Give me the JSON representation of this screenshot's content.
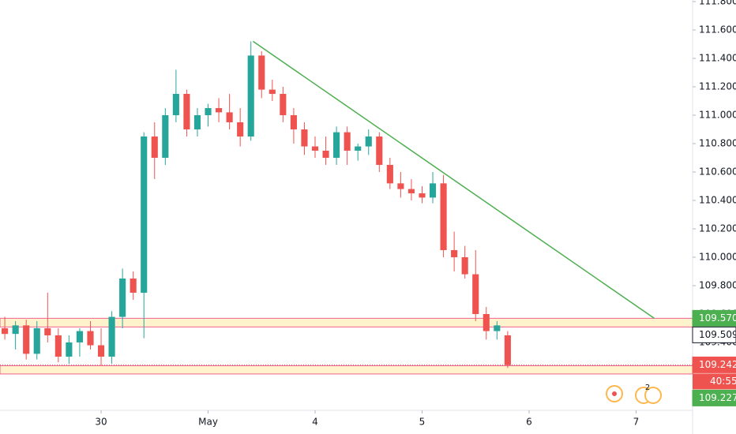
{
  "chart_data": {
    "type": "candlestick",
    "up_color": "#26a69a",
    "down_color": "#ef5350",
    "x": [
      -0.9,
      -0.8,
      -0.7,
      -0.6,
      -0.5,
      -0.4,
      -0.3,
      -0.2,
      -0.1,
      0.0,
      0.1,
      0.2,
      0.3,
      0.4,
      0.5,
      0.6,
      0.7,
      0.8,
      0.9,
      1.0,
      1.1,
      1.2,
      1.3,
      1.4,
      1.5,
      1.6,
      1.7,
      1.8,
      1.9,
      2.0,
      2.1,
      2.2,
      2.3,
      2.4,
      2.5,
      2.6,
      2.7,
      2.8,
      2.9,
      3.0,
      3.1,
      3.2,
      3.3,
      3.4,
      3.5,
      3.6,
      3.7,
      3.8
    ],
    "open": [
      109.5,
      109.46,
      109.52,
      109.32,
      109.5,
      109.45,
      109.3,
      109.4,
      109.48,
      109.38,
      109.3,
      109.58,
      109.85,
      109.75,
      110.85,
      110.7,
      111.0,
      111.15,
      110.9,
      111.0,
      111.05,
      111.02,
      110.95,
      110.85,
      111.42,
      111.18,
      111.15,
      111.0,
      110.9,
      110.78,
      110.75,
      110.7,
      110.88,
      110.75,
      110.78,
      110.85,
      110.65,
      110.52,
      110.48,
      110.45,
      110.42,
      110.52,
      110.05,
      110.0,
      109.88,
      109.6,
      109.48,
      109.45
    ],
    "high": [
      109.58,
      109.55,
      109.56,
      109.55,
      109.75,
      109.5,
      109.45,
      109.5,
      109.55,
      109.5,
      109.62,
      109.92,
      109.9,
      110.88,
      110.95,
      111.05,
      111.32,
      111.18,
      111.05,
      111.08,
      111.12,
      111.15,
      111.05,
      111.52,
      111.45,
      111.25,
      111.2,
      111.05,
      110.95,
      110.85,
      110.85,
      110.92,
      110.92,
      110.8,
      110.9,
      110.88,
      110.7,
      110.6,
      110.55,
      110.5,
      110.6,
      110.58,
      110.18,
      110.08,
      110.05,
      109.65,
      109.55,
      109.48
    ],
    "low": [
      109.42,
      109.35,
      109.28,
      109.28,
      109.4,
      109.26,
      109.25,
      109.3,
      109.35,
      109.24,
      109.25,
      109.5,
      109.7,
      109.43,
      110.55,
      110.65,
      110.95,
      110.85,
      110.85,
      110.92,
      110.95,
      110.9,
      110.78,
      110.82,
      111.12,
      111.1,
      110.95,
      110.8,
      110.72,
      110.7,
      110.65,
      110.65,
      110.65,
      110.68,
      110.72,
      110.6,
      110.48,
      110.42,
      110.4,
      110.38,
      110.38,
      110.0,
      109.9,
      109.85,
      109.55,
      109.42,
      109.42,
      109.22
    ],
    "close": [
      109.46,
      109.52,
      109.32,
      109.5,
      109.45,
      109.3,
      109.4,
      109.48,
      109.38,
      109.3,
      109.58,
      109.85,
      109.75,
      110.85,
      110.7,
      111.0,
      111.15,
      110.9,
      111.0,
      111.05,
      111.02,
      110.95,
      110.85,
      111.42,
      111.18,
      111.15,
      111.0,
      110.9,
      110.78,
      110.75,
      110.7,
      110.88,
      110.75,
      110.78,
      110.85,
      110.65,
      110.52,
      110.48,
      110.45,
      110.42,
      110.52,
      110.05,
      110.0,
      109.88,
      109.6,
      109.48,
      109.52,
      109.24
    ],
    "xlim": [
      -0.945,
      5.528
    ],
    "xticks": [
      {
        "value": 0,
        "label": "30"
      },
      {
        "value": 1,
        "label": "May"
      },
      {
        "value": 2,
        "label": "4"
      },
      {
        "value": 3,
        "label": "5"
      },
      {
        "value": 4,
        "label": "6"
      },
      {
        "value": 5,
        "label": "7"
      }
    ],
    "ylim": [
      108.922,
      111.811
    ],
    "yticks": [
      {
        "value": 111.8,
        "label": "111.800"
      },
      {
        "value": 111.6,
        "label": "111.600"
      },
      {
        "value": 111.4,
        "label": "111.400"
      },
      {
        "value": 111.2,
        "label": "111.200"
      },
      {
        "value": 111.0,
        "label": "111.000"
      },
      {
        "value": 110.8,
        "label": "110.800"
      },
      {
        "value": 110.6,
        "label": "110.600"
      },
      {
        "value": 110.4,
        "label": "110.400"
      },
      {
        "value": 110.2,
        "label": "110.200"
      },
      {
        "value": 110.0,
        "label": "110.000"
      },
      {
        "value": 109.8,
        "label": "109.800"
      },
      {
        "value": 109.6,
        "label": "109.600"
      },
      {
        "value": 109.4,
        "label": "109.400"
      }
    ],
    "trendline": {
      "x": [
        1.42,
        5.17
      ],
      "y": [
        111.52,
        109.57
      ],
      "color": "#4caf50"
    },
    "zones": [
      {
        "from": 109.509,
        "to": 109.57
      },
      {
        "from": 109.178,
        "to": 109.236
      }
    ],
    "levels": [
      {
        "value": 109.57,
        "label": "109.570",
        "color": "#4caf50"
      },
      {
        "value": 109.509,
        "label": "109.509",
        "color": "#ffffff"
      },
      {
        "value": 109.242,
        "label": "109.242",
        "color": "#ef5350",
        "dotted": true,
        "countdown": "40:55"
      },
      {
        "value": 109.227,
        "label": "109.227",
        "color": "#4caf50"
      }
    ],
    "badge": "2"
  }
}
